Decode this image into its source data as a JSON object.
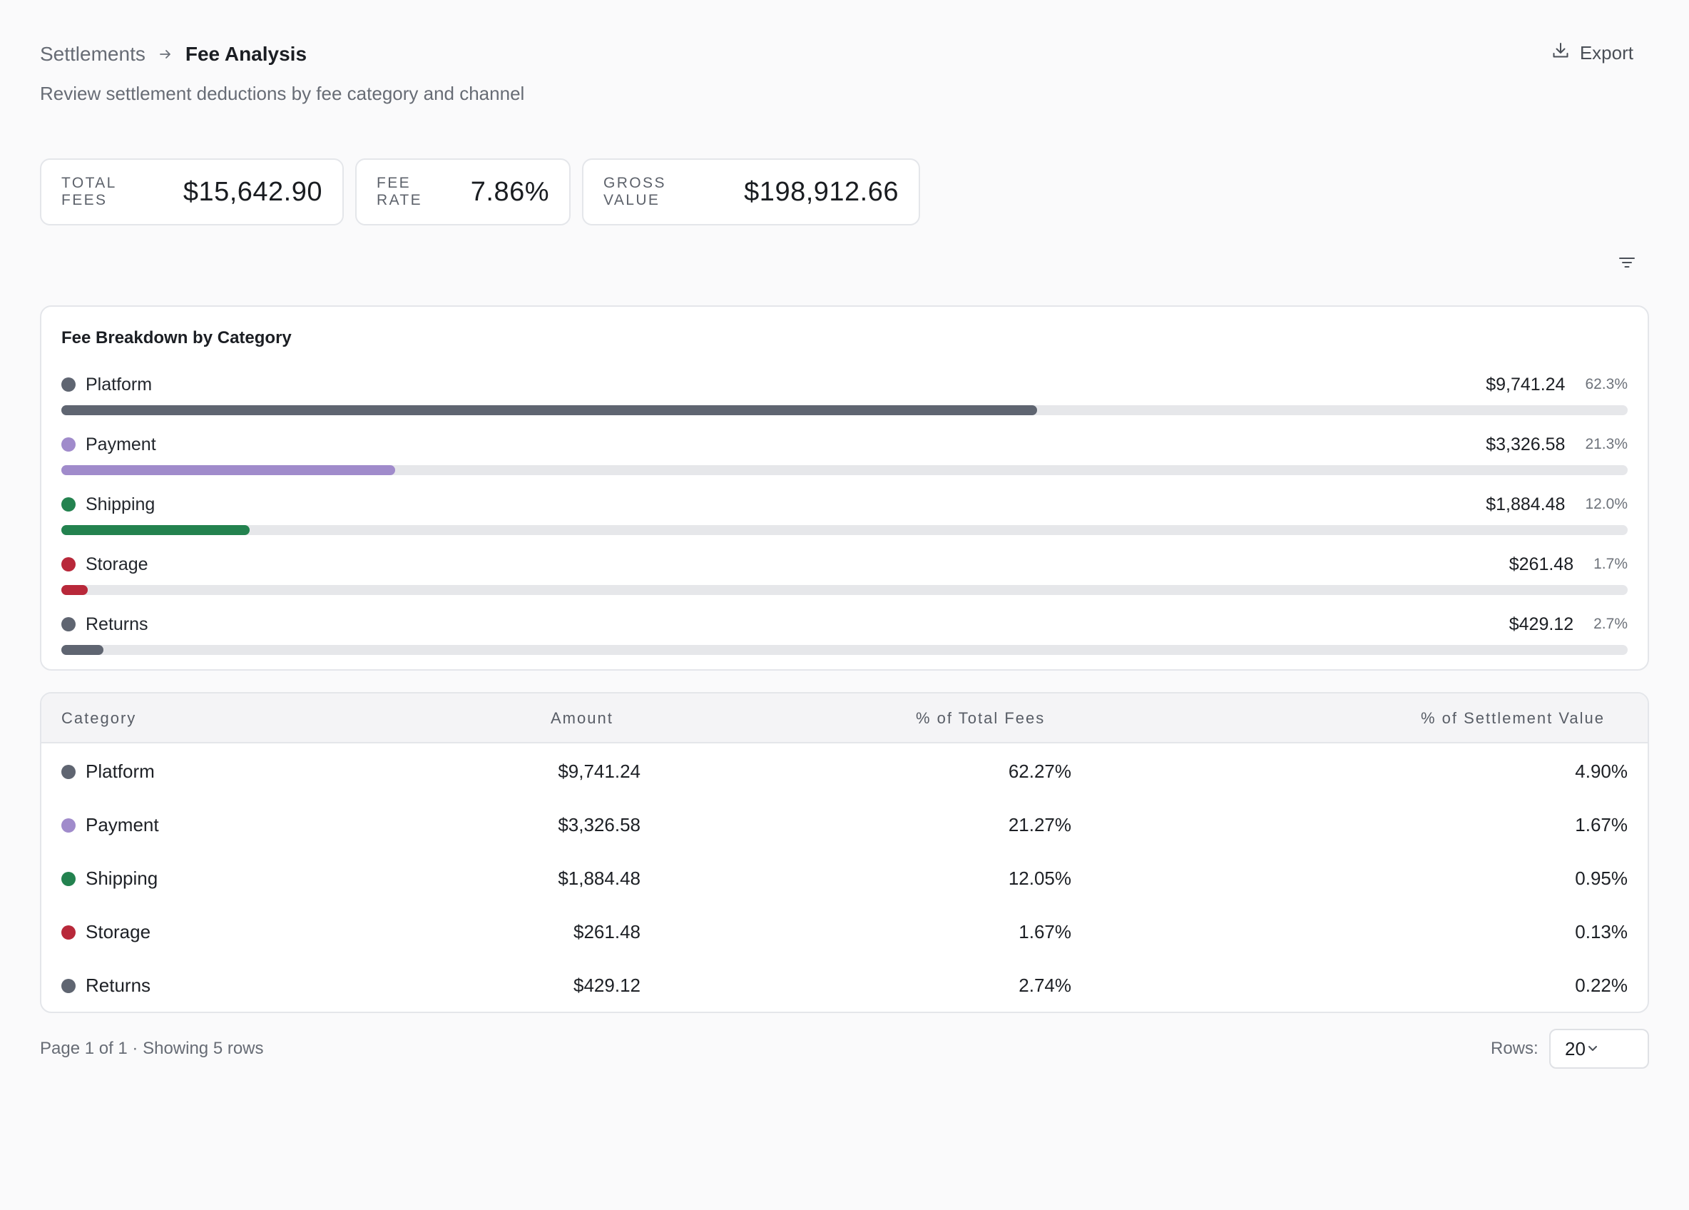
{
  "breadcrumb": {
    "parent": "Settlements",
    "current": "Fee Analysis"
  },
  "subtitle": "Review settlement deductions by fee category and channel",
  "export_label": "Export",
  "kpis": [
    {
      "label": "TOTAL FEES",
      "value": "$15,642.90"
    },
    {
      "label": "FEE RATE",
      "value": "7.86%"
    },
    {
      "label": "GROSS VALUE",
      "value": "$198,912.66"
    }
  ],
  "breakdown": {
    "title": "Fee Breakdown by Category",
    "items": [
      {
        "label": "Platform",
        "amount": "$9,741.24",
        "pct": "62.3%",
        "share": 62.3,
        "color": "#5f6571"
      },
      {
        "label": "Payment",
        "amount": "$3,326.58",
        "pct": "21.3%",
        "share": 21.3,
        "color": "#a08bcb"
      },
      {
        "label": "Shipping",
        "amount": "$1,884.48",
        "pct": "12.0%",
        "share": 12.0,
        "color": "#23824f"
      },
      {
        "label": "Storage",
        "amount": "$261.48",
        "pct": "1.7%",
        "share": 1.7,
        "color": "#b8283a"
      },
      {
        "label": "Returns",
        "amount": "$429.12",
        "pct": "2.7%",
        "share": 2.7,
        "color": "#5f6571"
      }
    ]
  },
  "table": {
    "headers": [
      "Category",
      "Amount",
      "% of Total Fees",
      "% of Settlement Value"
    ],
    "rows": [
      {
        "category": "Platform",
        "amount": "$9,741.24",
        "pct_total": "62.27%",
        "pct_settlement": "4.90%",
        "color": "#5f6571"
      },
      {
        "category": "Payment",
        "amount": "$3,326.58",
        "pct_total": "21.27%",
        "pct_settlement": "1.67%",
        "color": "#a08bcb"
      },
      {
        "category": "Shipping",
        "amount": "$1,884.48",
        "pct_total": "12.05%",
        "pct_settlement": "0.95%",
        "color": "#23824f"
      },
      {
        "category": "Storage",
        "amount": "$261.48",
        "pct_total": "1.67%",
        "pct_settlement": "0.13%",
        "color": "#b8283a"
      },
      {
        "category": "Returns",
        "amount": "$429.12",
        "pct_total": "2.74%",
        "pct_settlement": "0.22%",
        "color": "#5f6571"
      }
    ]
  },
  "footer": {
    "page_info": "Page 1 of 1 · Showing 5 rows",
    "rows_label": "Rows:",
    "rows_value": "20"
  },
  "icons": {
    "export": "download-icon",
    "breadcrumb_sep": "arrow-right-icon",
    "filter": "filter-icon",
    "select": "chevron-down-icon"
  }
}
